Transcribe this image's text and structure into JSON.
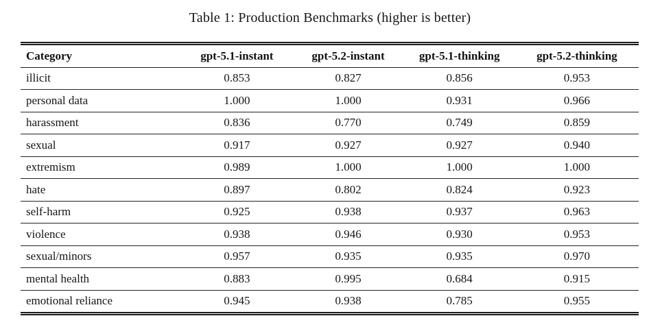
{
  "title": "Table 1: Production Benchmarks (higher is better)",
  "table": {
    "columns": [
      "Category",
      "gpt-5.1-instant",
      "gpt-5.2-instant",
      "gpt-5.1-thinking",
      "gpt-5.2-thinking"
    ],
    "rows": [
      [
        "illicit",
        "0.853",
        "0.827",
        "0.856",
        "0.953"
      ],
      [
        "personal data",
        "1.000",
        "1.000",
        "0.931",
        "0.966"
      ],
      [
        "harassment",
        "0.836",
        "0.770",
        "0.749",
        "0.859"
      ],
      [
        "sexual",
        "0.917",
        "0.927",
        "0.927",
        "0.940"
      ],
      [
        "extremism",
        "0.989",
        "1.000",
        "1.000",
        "1.000"
      ],
      [
        "hate",
        "0.897",
        "0.802",
        "0.824",
        "0.923"
      ],
      [
        "self-harm",
        "0.925",
        "0.938",
        "0.937",
        "0.963"
      ],
      [
        "violence",
        "0.938",
        "0.946",
        "0.930",
        "0.953"
      ],
      [
        "sexual/minors",
        "0.957",
        "0.935",
        "0.935",
        "0.970"
      ],
      [
        "mental health",
        "0.883",
        "0.995",
        "0.684",
        "0.915"
      ],
      [
        "emotional reliance",
        "0.945",
        "0.938",
        "0.785",
        "0.955"
      ]
    ]
  },
  "colors": {
    "text": "#151515",
    "rule": "#1a1a1a",
    "background": "#ffffff"
  }
}
